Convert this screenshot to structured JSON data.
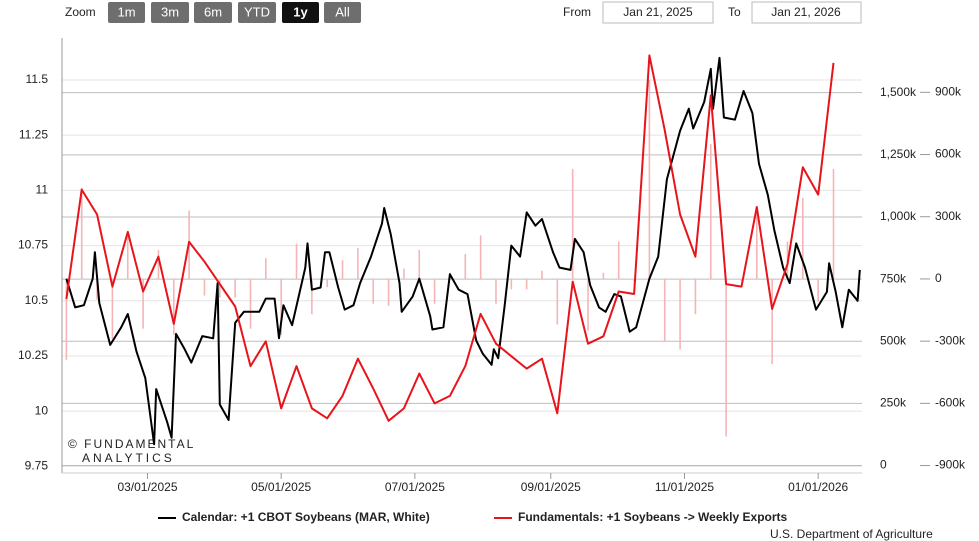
{
  "range_selector": {
    "zoom_label": "Zoom",
    "buttons": [
      "1m",
      "3m",
      "6m",
      "YTD",
      "1y",
      "All"
    ],
    "selected": 4,
    "from_label": "From",
    "from": "Jan 21, 2025",
    "to_label": "To",
    "to": "Jan 21, 2026"
  },
  "chart_data": {
    "type": "line",
    "watermark": [
      "© FUNDAMENTAL",
      "ANALYTICS"
    ],
    "source": "U.S. Department of Agriculture",
    "xlim": [
      "2025-01-21",
      "2026-01-21"
    ],
    "xticks": [
      {
        "value": "2025-03-01",
        "label": "03/01/2025"
      },
      {
        "value": "2025-05-01",
        "label": "05/01/2025"
      },
      {
        "value": "2025-07-01",
        "label": "07/01/2025"
      },
      {
        "value": "2025-09-01",
        "label": "09/01/2025"
      },
      {
        "value": "2025-11-01",
        "label": "11/01/2025"
      },
      {
        "value": "2026-01-01",
        "label": "01/01/2026"
      }
    ],
    "ylim": [
      9.72,
      11.69
    ],
    "yticks": [
      9.75,
      10,
      10.25,
      10.5,
      10.75,
      11,
      11.25,
      11.5
    ],
    "y2lim": [
      -30000,
      1720000
    ],
    "y2ticks": [
      0,
      {
        "value": 250000,
        "label": "250k"
      },
      {
        "value": 500000,
        "label": "500k"
      },
      {
        "value": 750000,
        "label": "750k"
      },
      {
        "value": 1000000,
        "label": "1,000k"
      },
      {
        "value": 1250000,
        "label": "1,250k"
      },
      {
        "value": 1500000,
        "label": "1,500k"
      }
    ],
    "y3lim": [
      -936000,
      1162000
    ],
    "y3ticks": [
      {
        "value": -900000,
        "label": "-900k"
      },
      {
        "value": -600000,
        "label": "-600k"
      },
      {
        "value": -300000,
        "label": "-300k"
      },
      0,
      {
        "value": 300000,
        "label": "300k"
      },
      {
        "value": 600000,
        "label": "600k"
      },
      {
        "value": 900000,
        "label": "900k"
      }
    ],
    "grid": true,
    "series": [
      {
        "name": "Calendar: +1 CBOT Soybeans (MAR, White)",
        "color": "#000000",
        "type": "line",
        "axis": "y",
        "x": [
          "2025-01-23",
          "2025-01-27",
          "2025-01-31",
          "2025-02-04",
          "2025-02-05",
          "2025-02-07",
          "2025-02-12",
          "2025-02-17",
          "2025-02-20",
          "2025-02-24",
          "2025-02-28",
          "2025-03-04",
          "2025-03-05",
          "2025-03-10",
          "2025-03-12",
          "2025-03-14",
          "2025-03-18",
          "2025-03-21",
          "2025-03-26",
          "2025-03-31",
          "2025-04-02",
          "2025-04-03",
          "2025-04-07",
          "2025-04-10",
          "2025-04-14",
          "2025-04-17",
          "2025-04-21",
          "2025-04-24",
          "2025-04-28",
          "2025-04-30",
          "2025-05-02",
          "2025-05-06",
          "2025-05-12",
          "2025-05-13",
          "2025-05-15",
          "2025-05-19",
          "2025-05-21",
          "2025-05-23",
          "2025-05-27",
          "2025-05-30",
          "2025-06-03",
          "2025-06-06",
          "2025-06-11",
          "2025-06-16",
          "2025-06-17",
          "2025-06-20",
          "2025-06-24",
          "2025-06-25",
          "2025-06-30",
          "2025-07-03",
          "2025-07-08",
          "2025-07-09",
          "2025-07-14",
          "2025-07-17",
          "2025-07-21",
          "2025-07-25",
          "2025-07-29",
          "2025-08-01",
          "2025-08-05",
          "2025-08-06",
          "2025-08-08",
          "2025-08-11",
          "2025-08-14",
          "2025-08-18",
          "2025-08-21",
          "2025-08-25",
          "2025-08-28",
          "2025-09-02",
          "2025-09-05",
          "2025-09-10",
          "2025-09-12",
          "2025-09-16",
          "2025-09-19",
          "2025-09-23",
          "2025-09-26",
          "2025-09-30",
          "2025-10-03",
          "2025-10-07",
          "2025-10-10",
          "2025-10-16",
          "2025-10-20",
          "2025-10-24",
          "2025-10-30",
          "2025-11-03",
          "2025-11-05",
          "2025-11-10",
          "2025-11-13",
          "2025-11-14",
          "2025-11-17",
          "2025-11-19",
          "2025-11-24",
          "2025-11-28",
          "2025-12-02",
          "2025-12-05",
          "2025-12-09",
          "2025-12-12",
          "2025-12-16",
          "2025-12-19",
          "2025-12-22",
          "2025-12-26",
          "2025-12-31",
          "2026-01-05",
          "2026-01-06",
          "2026-01-09",
          "2026-01-12",
          "2026-01-15",
          "2026-01-19",
          "2026-01-20"
        ],
        "values": [
          10.6,
          10.47,
          10.48,
          10.6,
          10.72,
          10.49,
          10.3,
          10.38,
          10.44,
          10.27,
          10.15,
          9.85,
          10.1,
          9.95,
          9.88,
          10.35,
          10.28,
          10.22,
          10.34,
          10.33,
          10.58,
          10.03,
          9.96,
          10.4,
          10.45,
          10.45,
          10.45,
          10.51,
          10.51,
          10.33,
          10.48,
          10.39,
          10.65,
          10.76,
          10.55,
          10.56,
          10.72,
          10.72,
          10.56,
          10.46,
          10.48,
          10.58,
          10.7,
          10.85,
          10.92,
          10.8,
          10.58,
          10.45,
          10.52,
          10.6,
          10.43,
          10.37,
          10.38,
          10.62,
          10.55,
          10.53,
          10.32,
          10.26,
          10.21,
          10.28,
          10.24,
          10.48,
          10.75,
          10.7,
          10.9,
          10.84,
          10.87,
          10.72,
          10.65,
          10.64,
          10.78,
          10.72,
          10.57,
          10.47,
          10.45,
          10.53,
          10.52,
          10.36,
          10.38,
          10.6,
          10.7,
          11.05,
          11.27,
          11.37,
          11.28,
          11.4,
          11.55,
          11.37,
          11.6,
          11.33,
          11.32,
          11.45,
          11.35,
          11.12,
          10.98,
          10.82,
          10.65,
          10.58,
          10.76,
          10.65,
          10.46,
          10.54,
          10.67,
          10.54,
          10.38,
          10.55,
          10.5,
          10.64
        ]
      },
      {
        "name": "Fundamentals: +1 Soybeans -> Weekly Exports",
        "color": "#e8141b",
        "type": "line",
        "axis": "y2",
        "x": [
          "2025-01-23",
          "2025-01-30",
          "2025-02-06",
          "2025-02-13",
          "2025-02-20",
          "2025-02-27",
          "2025-03-06",
          "2025-03-13",
          "2025-03-20",
          "2025-03-27",
          "2025-04-03",
          "2025-04-10",
          "2025-04-17",
          "2025-04-24",
          "2025-05-01",
          "2025-05-08",
          "2025-05-15",
          "2025-05-22",
          "2025-05-29",
          "2025-06-05",
          "2025-06-12",
          "2025-06-19",
          "2025-06-26",
          "2025-07-03",
          "2025-07-10",
          "2025-07-17",
          "2025-07-24",
          "2025-07-31",
          "2025-08-07",
          "2025-08-14",
          "2025-08-21",
          "2025-08-28",
          "2025-09-04",
          "2025-09-11",
          "2025-09-18",
          "2025-09-25",
          "2025-10-02",
          "2025-10-09",
          "2025-10-16",
          "2025-10-23",
          "2025-10-30",
          "2025-11-06",
          "2025-11-13",
          "2025-11-20",
          "2025-11-27",
          "2025-12-04",
          "2025-12-11",
          "2025-12-18",
          "2025-12-25",
          "2026-01-01",
          "2026-01-08"
        ],
        "values": [
          670000,
          1110000,
          1010000,
          720000,
          940000,
          700000,
          840000,
          570000,
          900000,
          820000,
          730000,
          640000,
          400000,
          500000,
          230000,
          400000,
          230000,
          190000,
          280000,
          430000,
          310000,
          180000,
          230000,
          370000,
          250000,
          280000,
          400000,
          610000,
          490000,
          440000,
          390000,
          430000,
          210000,
          740000,
          490000,
          520000,
          700000,
          690000,
          1650000,
          1350000,
          1010000,
          840000,
          1490000,
          730000,
          720000,
          1040000,
          630000,
          810000,
          1200000,
          1090000,
          1620000
        ]
      },
      {
        "color": "#f5b5b7",
        "type": "bar",
        "axis": "y3",
        "x": [
          "2025-01-23",
          "2025-01-30",
          "2025-02-06",
          "2025-02-13",
          "2025-02-20",
          "2025-02-27",
          "2025-03-06",
          "2025-03-13",
          "2025-03-20",
          "2025-03-27",
          "2025-04-03",
          "2025-04-10",
          "2025-04-17",
          "2025-04-24",
          "2025-05-01",
          "2025-05-08",
          "2025-05-15",
          "2025-05-22",
          "2025-05-29",
          "2025-06-05",
          "2025-06-12",
          "2025-06-19",
          "2025-06-26",
          "2025-07-03",
          "2025-07-10",
          "2025-07-17",
          "2025-07-24",
          "2025-07-31",
          "2025-08-07",
          "2025-08-14",
          "2025-08-21",
          "2025-08-28",
          "2025-09-04",
          "2025-09-11",
          "2025-09-18",
          "2025-09-25",
          "2025-10-02",
          "2025-10-09",
          "2025-10-16",
          "2025-10-23",
          "2025-10-30",
          "2025-11-06",
          "2025-11-13",
          "2025-11-20",
          "2025-11-27",
          "2025-12-04",
          "2025-12-11",
          "2025-12-18",
          "2025-12-25",
          "2026-01-01",
          "2026-01-08"
        ],
        "values": [
          -390000,
          440000,
          -100000,
          -290000,
          220000,
          -240000,
          140000,
          -270000,
          330000,
          -80000,
          -90000,
          -90000,
          -240000,
          100000,
          -270000,
          170000,
          -170000,
          -40000,
          90000,
          150000,
          -120000,
          -130000,
          50000,
          140000,
          -120000,
          30000,
          120000,
          210000,
          -120000,
          -50000,
          -50000,
          40000,
          -220000,
          530000,
          -250000,
          30000,
          180000,
          -10000,
          960000,
          -300000,
          -340000,
          -170000,
          650000,
          -760000,
          -10000,
          320000,
          -410000,
          180000,
          390000,
          -110000,
          530000
        ]
      }
    ]
  }
}
